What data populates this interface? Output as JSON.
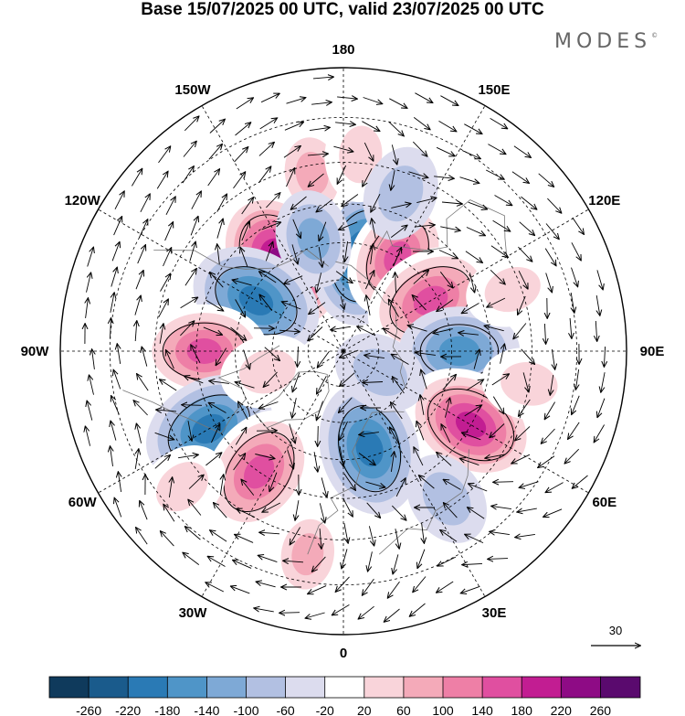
{
  "title": "Base 15/07/2025 00 UTC, valid 23/07/2025 00 UTC",
  "logo": "MODES",
  "logo_mark": "©",
  "longitude_labels": [
    {
      "id": "lon-180",
      "text": "180",
      "deg": 180
    },
    {
      "id": "lon-150w",
      "text": "150W",
      "deg": -150
    },
    {
      "id": "lon-150e",
      "text": "150E",
      "deg": 150
    },
    {
      "id": "lon-120w",
      "text": "120W",
      "deg": -120
    },
    {
      "id": "lon-120e",
      "text": "120E",
      "deg": 120
    },
    {
      "id": "lon-90w",
      "text": "90W",
      "deg": -90
    },
    {
      "id": "lon-90e",
      "text": "90E",
      "deg": 90
    },
    {
      "id": "lon-60w",
      "text": "60W",
      "deg": -60
    },
    {
      "id": "lon-60e",
      "text": "60E",
      "deg": 60
    },
    {
      "id": "lon-30w",
      "text": "30W",
      "deg": -30
    },
    {
      "id": "lon-30e",
      "text": "30E",
      "deg": 30
    },
    {
      "id": "lon-0",
      "text": "0",
      "deg": 0
    }
  ],
  "wind_reference": {
    "label": "30",
    "value": 30
  },
  "colorbar": {
    "labels": [
      "-260",
      "-220",
      "-180",
      "-140",
      "-100",
      "-60",
      "-20",
      "20",
      "60",
      "100",
      "140",
      "180",
      "220",
      "260"
    ],
    "colors": [
      "#0f3a5c",
      "#1a5b8c",
      "#2a7ab5",
      "#4f95c8",
      "#7ea9d6",
      "#b2c0e2",
      "#dcdcee",
      "#ffffff",
      "#f9d4da",
      "#f4aab9",
      "#ee7fa6",
      "#e04fa0",
      "#c21d92",
      "#8e0b85",
      "#5a0a6e"
    ]
  },
  "anomalies": [
    {
      "name": "anomaly-center-canada-north",
      "lon": -145,
      "lat": 60,
      "value": 250
    },
    {
      "name": "anomaly-center-beaufort",
      "lon": 168,
      "lat": 63,
      "value": -200
    },
    {
      "name": "anomaly-center-east-siberia",
      "lon": 150,
      "lat": 60,
      "value": 150
    },
    {
      "name": "anomaly-center-north-canada",
      "lon": -120,
      "lat": 62,
      "value": -180
    },
    {
      "name": "anomaly-center-central-siberia",
      "lon": 120,
      "lat": 62,
      "value": 180
    },
    {
      "name": "anomaly-center-hudson",
      "lon": -90,
      "lat": 52,
      "value": 160
    },
    {
      "name": "anomaly-center-west-siberia",
      "lon": 90,
      "lat": 58,
      "value": -140
    },
    {
      "name": "anomaly-center-labrador",
      "lon": -60,
      "lat": 48,
      "value": -180
    },
    {
      "name": "anomaly-center-caspian",
      "lon": 60,
      "lat": 50,
      "value": 200
    },
    {
      "name": "anomaly-center-north-atlantic",
      "lon": -35,
      "lat": 50,
      "value": 180
    },
    {
      "name": "anomaly-center-scandinavia",
      "lon": 15,
      "lat": 62,
      "value": -180
    },
    {
      "name": "anomaly-center-pacific-east",
      "lon": -170,
      "lat": 42,
      "value": 80
    },
    {
      "name": "anomaly-center-pacific-west",
      "lon": 175,
      "lat": 38,
      "value": 60
    },
    {
      "name": "anomaly-center-mongolia",
      "lon": 110,
      "lat": 42,
      "value": 60
    },
    {
      "name": "anomaly-center-iberia",
      "lon": -10,
      "lat": 36,
      "value": 70
    },
    {
      "name": "anomaly-center-east-europe",
      "lon": 35,
      "lat": 42,
      "value": -60
    },
    {
      "name": "anomaly-center-central-asia",
      "lon": 80,
      "lat": 40,
      "value": 60
    },
    {
      "name": "anomaly-center-north-pacific-canada",
      "lon": -165,
      "lat": 58,
      "value": -70
    },
    {
      "name": "anomaly-center-baffin",
      "lon": -75,
      "lat": 68,
      "value": 60
    },
    {
      "name": "anomaly-center-arctic-ocean",
      "lon": 60,
      "lat": 78,
      "value": -60
    },
    {
      "name": "anomaly-center-west-atlantic",
      "lon": -50,
      "lat": 35,
      "value": 60
    },
    {
      "name": "anomaly-center-kamchatka",
      "lon": 160,
      "lat": 45,
      "value": -60
    }
  ]
}
